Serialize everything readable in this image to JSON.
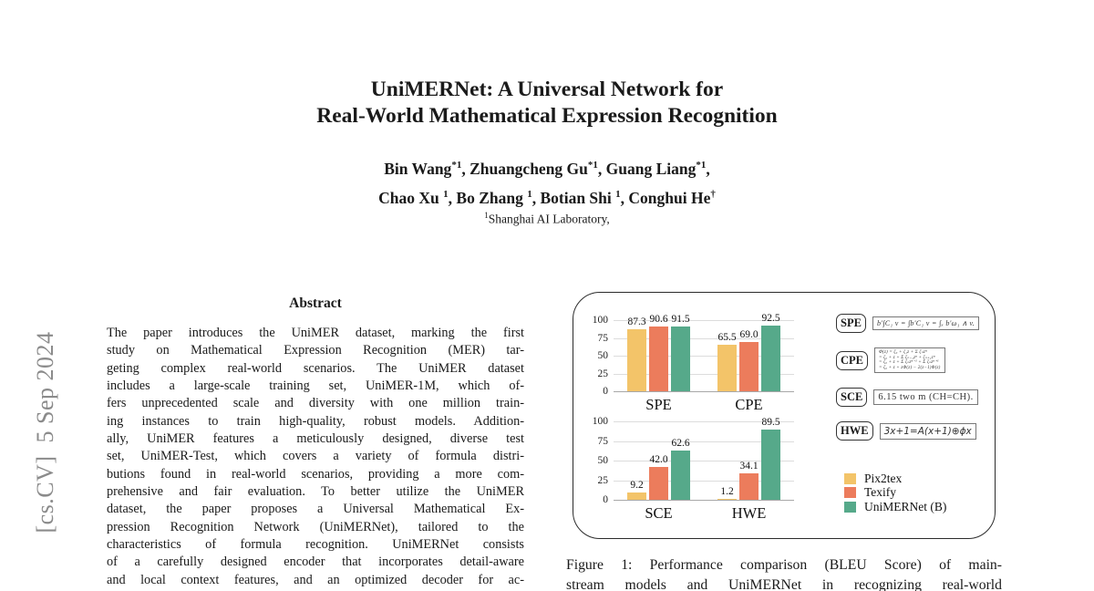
{
  "arxiv_stamp": "[cs.CV]  5 Sep 2024",
  "title": {
    "line1": "UniMERNet: A Universal Network for",
    "line2": "Real-World Mathematical Expression Recognition"
  },
  "authors": {
    "line1": [
      {
        "name": "Bin Wang",
        "sup": "*1",
        "suffix": ", "
      },
      {
        "name": "Zhuangcheng Gu",
        "sup": "*1",
        "suffix": ", "
      },
      {
        "name": "Guang Liang",
        "sup": "*1",
        "suffix": ","
      }
    ],
    "line2": [
      {
        "name": "Chao Xu ",
        "sup": "1",
        "suffix": ", "
      },
      {
        "name": "Bo Zhang ",
        "sup": "1",
        "suffix": ", "
      },
      {
        "name": "Botian Shi ",
        "sup": "1",
        "suffix": ", "
      },
      {
        "name": "Conghui He",
        "sup": "†",
        "suffix": ""
      }
    ]
  },
  "affiliation": {
    "sup": "1",
    "text": "Shanghai AI Laboratory,"
  },
  "abstract": {
    "heading": "Abstract",
    "lines": [
      "The paper introduces the UniMER dataset, marking the first",
      "study on Mathematical Expression Recognition (MER) tar-",
      "geting complex real-world scenarios. The UniMER dataset",
      "includes a large-scale training set, UniMER-1M, which of-",
      "fers unprecedented scale and diversity with one million train-",
      "ing instances to train high-quality, robust models. Addition-",
      "ally, UniMER features a meticulously designed, diverse test",
      "set, UniMER-Test, which covers a variety of formula distri-",
      "butions found in real-world scenarios, providing a more com-",
      "prehensive and fair evaluation. To better utilize the UniMER",
      "dataset, the paper proposes a Universal Mathematical Ex-",
      "pression Recognition Network (UniMERNet), tailored to the",
      "characteristics of formula recognition. UniMERNet consists",
      "of a carefully designed encoder that incorporates detail-aware",
      "and local context features, and an optimized decoder for ac-"
    ]
  },
  "figure": {
    "examples": [
      {
        "label": "SPE",
        "formula": "b′∫C₁ v = ∫b′C₁ v = ∫ₓ b′ω₁ ∧ v.",
        "style": "f-spe"
      },
      {
        "label": "CPE",
        "formula_lines": [
          "Φ(z) = ζ₀ + ζ₁z + Σ ζₙzⁿ",
          "= ζ₀ + z + Σ ζₙ₋₁zⁿ + ζₙ₊₁zⁿ",
          "= ζ₀ + z + Σ ζₙzⁿ⁻¹ + Σ ζₙzⁿ⁺¹",
          "= ζ₀ + z + zΦ(z) − 2(z−1)Φ(z)"
        ],
        "style": "f-cpe"
      },
      {
        "label": "SCE",
        "formula": "6.15  two  m  (CH=CH).",
        "style": "f-sce"
      },
      {
        "label": "HWE",
        "formula": "3x+1=A(x+1)⊕ɸx",
        "style": "f-hwe"
      }
    ],
    "legend": [
      {
        "label": "Pix2tex",
        "color": "#F3C469"
      },
      {
        "label": "Texify",
        "color": "#EC7C5C"
      },
      {
        "label": "UniMERNet (B)",
        "color": "#56A98A"
      }
    ],
    "caption_lines": [
      "Figure 1: Performance comparison (BLEU Score) of main-",
      "stream models and UniMERNet in recognizing real-world"
    ]
  },
  "chart_data": [
    {
      "type": "bar",
      "categories": [
        "SPE",
        "CPE"
      ],
      "series": [
        {
          "name": "Pix2tex",
          "color": "#F3C469",
          "values": [
            87.3,
            65.5
          ]
        },
        {
          "name": "Texify",
          "color": "#EC7C5C",
          "values": [
            90.6,
            69.0
          ]
        },
        {
          "name": "UniMERNet (B)",
          "color": "#56A98A",
          "values": [
            91.5,
            92.5
          ]
        }
      ],
      "title": "",
      "xlabel": "",
      "ylabel": "",
      "ylim": [
        0,
        100
      ],
      "yticks": [
        0,
        25,
        50,
        75,
        100
      ],
      "grid": true,
      "value_labels": true,
      "legend_position": "right-bottom"
    },
    {
      "type": "bar",
      "categories": [
        "SCE",
        "HWE"
      ],
      "series": [
        {
          "name": "Pix2tex",
          "color": "#F3C469",
          "values": [
            9.2,
            1.2
          ]
        },
        {
          "name": "Texify",
          "color": "#EC7C5C",
          "values": [
            42.0,
            34.1
          ]
        },
        {
          "name": "UniMERNet (B)",
          "color": "#56A98A",
          "values": [
            62.6,
            89.5
          ]
        }
      ],
      "title": "",
      "xlabel": "",
      "ylabel": "",
      "ylim": [
        0,
        100
      ],
      "yticks": [
        0,
        25,
        50,
        75,
        100
      ],
      "grid": true,
      "value_labels": true,
      "legend_position": "right-bottom"
    }
  ]
}
